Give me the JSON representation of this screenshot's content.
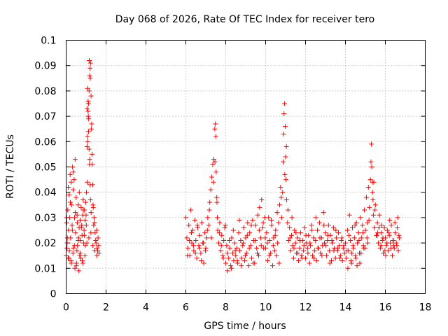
{
  "chart_data": {
    "type": "scatter",
    "title": "Day 068 of 2026, Rate Of TEC Index for receiver tero",
    "xlabel": "GPS time / hours",
    "ylabel": "ROTI / TECUs",
    "xlim": [
      0,
      18
    ],
    "ylim": [
      0,
      0.1
    ],
    "xticks": [
      0,
      2,
      4,
      6,
      8,
      10,
      12,
      14,
      16,
      18
    ],
    "yticks": [
      0,
      0.01,
      0.02,
      0.03,
      0.04,
      0.05,
      0.06,
      0.07,
      0.08,
      0.09,
      0.1
    ],
    "xtick_labels": [
      "0",
      "2",
      "4",
      "6",
      "8",
      "10",
      "12",
      "14",
      "16",
      "18"
    ],
    "ytick_labels": [
      "0",
      "0.01",
      "0.02",
      "0.03",
      "0.04",
      "0.05",
      "0.06",
      "0.07",
      "0.08",
      "0.09",
      "0.1"
    ],
    "grid": true,
    "marker": "plus",
    "color": "#ff0000",
    "series": [
      {
        "x": [
          0.0,
          0.03,
          0.05,
          0.08,
          0.1,
          0.12,
          0.15,
          0.18,
          0.2,
          0.22,
          0.25,
          0.27,
          0.3,
          0.32,
          0.35,
          0.37,
          0.4,
          0.42,
          0.45,
          0.47,
          0.5,
          0.52,
          0.55,
          0.57,
          0.6,
          0.62,
          0.65,
          0.68,
          0.7,
          0.72,
          0.75,
          0.78,
          0.8,
          0.83,
          0.85,
          0.88,
          0.9,
          0.92,
          0.95,
          0.98,
          1.0,
          1.02,
          1.05,
          1.07,
          1.1,
          1.12,
          1.15,
          1.18,
          1.2,
          1.22,
          1.25,
          1.28,
          1.3,
          1.33,
          1.35,
          1.38,
          1.4,
          1.45,
          1.5,
          1.55,
          1.6,
          1.65,
          0.02,
          0.06,
          0.11,
          0.16,
          0.21,
          0.26,
          0.31,
          0.36,
          0.41,
          0.46,
          0.51,
          0.56,
          0.61,
          0.66,
          0.71,
          0.76,
          0.81,
          0.86,
          0.91,
          0.96,
          1.01,
          1.06,
          1.11,
          1.16,
          1.21,
          1.26,
          1.31,
          1.36,
          1.42,
          1.48,
          1.53,
          1.58,
          1.63,
          0.04,
          0.14,
          0.24,
          0.34,
          0.44,
          0.54,
          0.64,
          0.74,
          0.84,
          0.94,
          1.04,
          1.14,
          1.24,
          1.34,
          1.44,
          1.54,
          1.05,
          1.08,
          1.1,
          1.12,
          1.15,
          1.17,
          1.2,
          1.22,
          1.25,
          1.13,
          1.18,
          1.09
        ],
        "y": [
          0.015,
          0.028,
          0.02,
          0.033,
          0.014,
          0.025,
          0.039,
          0.03,
          0.047,
          0.022,
          0.044,
          0.035,
          0.027,
          0.05,
          0.041,
          0.018,
          0.045,
          0.03,
          0.053,
          0.024,
          0.038,
          0.012,
          0.031,
          0.019,
          0.035,
          0.022,
          0.026,
          0.015,
          0.029,
          0.021,
          0.034,
          0.027,
          0.023,
          0.031,
          0.037,
          0.02,
          0.025,
          0.033,
          0.029,
          0.036,
          0.031,
          0.04,
          0.058,
          0.062,
          0.072,
          0.075,
          0.08,
          0.086,
          0.089,
          0.091,
          0.078,
          0.067,
          0.055,
          0.043,
          0.035,
          0.027,
          0.03,
          0.024,
          0.02,
          0.018,
          0.022,
          0.016,
          0.03,
          0.022,
          0.042,
          0.017,
          0.036,
          0.012,
          0.025,
          0.048,
          0.019,
          0.032,
          0.011,
          0.028,
          0.021,
          0.04,
          0.016,
          0.026,
          0.013,
          0.033,
          0.023,
          0.019,
          0.027,
          0.044,
          0.07,
          0.092,
          0.085,
          0.065,
          0.051,
          0.034,
          0.028,
          0.021,
          0.025,
          0.017,
          0.019,
          0.018,
          0.014,
          0.013,
          0.016,
          0.01,
          0.017,
          0.009,
          0.014,
          0.012,
          0.015,
          0.02,
          0.022,
          0.024,
          0.019,
          0.017,
          0.015,
          0.073,
          0.081,
          0.076,
          0.064,
          0.057,
          0.051,
          0.043,
          0.037,
          0.032,
          0.069,
          0.053,
          0.06
        ]
      },
      {
        "x": [
          6.0,
          6.05,
          6.1,
          6.15,
          6.2,
          6.25,
          6.3,
          6.35,
          6.4,
          6.45,
          6.5,
          6.55,
          6.6,
          6.65,
          6.7,
          6.75,
          6.8,
          6.85,
          6.9,
          6.95,
          7.0,
          7.05,
          7.1,
          7.15,
          7.2,
          7.25,
          7.3,
          7.35,
          7.4,
          7.45,
          7.48,
          7.5,
          7.52,
          7.55,
          7.58,
          7.6,
          7.65,
          7.7,
          7.75,
          7.8,
          7.85,
          7.9,
          7.95,
          8.0,
          8.05,
          8.1,
          8.15,
          8.2,
          8.25,
          8.3,
          8.35,
          8.4,
          8.45,
          8.5,
          8.55,
          8.6,
          8.65,
          8.7,
          8.75,
          8.8,
          8.85,
          8.9,
          8.95,
          9.0,
          9.05,
          9.1,
          9.15,
          9.2,
          9.25,
          9.3,
          9.35,
          9.4,
          9.45,
          9.5,
          9.55,
          9.6,
          9.65,
          9.7,
          9.75,
          9.8,
          9.85,
          9.9,
          9.95,
          6.08,
          6.18,
          6.28,
          6.38,
          6.48,
          6.58,
          6.68,
          6.78,
          6.88,
          6.98,
          7.08,
          7.18,
          7.28,
          7.38,
          7.46,
          7.56,
          7.68,
          7.78,
          7.88,
          7.98,
          8.08,
          8.18,
          8.28,
          8.38,
          8.48,
          8.58,
          8.68,
          8.78,
          8.88,
          8.98,
          9.08,
          9.18,
          9.28,
          9.38,
          9.48,
          9.58,
          9.68,
          9.78,
          9.88,
          9.98
        ],
        "y": [
          0.03,
          0.022,
          0.018,
          0.027,
          0.015,
          0.033,
          0.02,
          0.025,
          0.017,
          0.029,
          0.021,
          0.014,
          0.026,
          0.019,
          0.023,
          0.016,
          0.028,
          0.02,
          0.012,
          0.024,
          0.018,
          0.022,
          0.03,
          0.027,
          0.036,
          0.041,
          0.046,
          0.051,
          0.053,
          0.065,
          0.067,
          0.062,
          0.048,
          0.038,
          0.03,
          0.025,
          0.02,
          0.028,
          0.017,
          0.023,
          0.015,
          0.021,
          0.026,
          0.012,
          0.019,
          0.009,
          0.014,
          0.018,
          0.011,
          0.022,
          0.016,
          0.013,
          0.02,
          0.015,
          0.018,
          0.012,
          0.024,
          0.017,
          0.021,
          0.014,
          0.019,
          0.026,
          0.013,
          0.022,
          0.016,
          0.028,
          0.011,
          0.024,
          0.019,
          0.014,
          0.029,
          0.021,
          0.012,
          0.027,
          0.018,
          0.031,
          0.015,
          0.034,
          0.022,
          0.037,
          0.026,
          0.018,
          0.03,
          0.015,
          0.021,
          0.024,
          0.019,
          0.016,
          0.027,
          0.018,
          0.013,
          0.02,
          0.017,
          0.025,
          0.033,
          0.022,
          0.044,
          0.052,
          0.036,
          0.024,
          0.019,
          0.014,
          0.027,
          0.016,
          0.021,
          0.01,
          0.025,
          0.017,
          0.013,
          0.029,
          0.011,
          0.02,
          0.015,
          0.023,
          0.018,
          0.027,
          0.012,
          0.021,
          0.016,
          0.025,
          0.019,
          0.028,
          0.022
        ]
      },
      {
        "x": [
          10.0,
          10.05,
          10.1,
          10.15,
          10.2,
          10.25,
          10.3,
          10.35,
          10.4,
          10.45,
          10.5,
          10.55,
          10.6,
          10.65,
          10.7,
          10.75,
          10.8,
          10.85,
          10.88,
          10.9,
          10.92,
          10.95,
          10.98,
          11.0,
          11.02,
          11.05,
          11.1,
          11.15,
          11.2,
          11.25,
          11.3,
          11.35,
          11.4,
          11.45,
          11.5,
          11.55,
          11.6,
          11.65,
          11.7,
          11.75,
          11.8,
          11.85,
          11.9,
          11.95,
          12.0,
          12.05,
          12.1,
          12.15,
          12.2,
          12.25,
          12.3,
          12.35,
          12.4,
          12.45,
          12.5,
          12.55,
          12.6,
          12.65,
          12.7,
          12.75,
          12.8,
          12.85,
          12.9,
          12.95,
          13.0,
          13.05,
          13.1,
          13.15,
          13.2,
          13.25,
          13.3,
          13.35,
          13.4,
          13.45,
          13.5,
          13.55,
          13.6,
          13.65,
          13.7,
          13.75,
          13.8,
          13.85,
          13.9,
          13.95,
          10.08,
          10.18,
          10.28,
          10.38,
          10.48,
          10.58,
          10.68,
          10.78,
          10.96,
          11.04,
          11.12,
          11.22,
          11.32,
          11.42,
          11.52,
          11.62,
          11.72,
          11.82,
          11.92,
          12.02,
          12.12,
          12.22,
          12.32,
          12.42,
          12.52,
          12.62,
          12.72,
          12.82,
          12.92,
          13.02,
          13.12,
          13.22,
          13.32,
          13.42,
          13.52,
          13.62,
          13.72,
          13.82,
          13.92
        ],
        "y": [
          0.018,
          0.024,
          0.013,
          0.03,
          0.021,
          0.016,
          0.027,
          0.011,
          0.022,
          0.017,
          0.025,
          0.015,
          0.02,
          0.028,
          0.035,
          0.042,
          0.03,
          0.04,
          0.052,
          0.063,
          0.071,
          0.075,
          0.066,
          0.054,
          0.045,
          0.037,
          0.028,
          0.021,
          0.026,
          0.017,
          0.023,
          0.019,
          0.014,
          0.025,
          0.02,
          0.016,
          0.022,
          0.013,
          0.018,
          0.024,
          0.015,
          0.021,
          0.017,
          0.026,
          0.014,
          0.02,
          0.018,
          0.023,
          0.012,
          0.019,
          0.027,
          0.015,
          0.022,
          0.017,
          0.021,
          0.013,
          0.025,
          0.018,
          0.028,
          0.016,
          0.022,
          0.019,
          0.032,
          0.02,
          0.024,
          0.015,
          0.021,
          0.027,
          0.017,
          0.023,
          0.013,
          0.02,
          0.026,
          0.018,
          0.014,
          0.022,
          0.017,
          0.024,
          0.019,
          0.015,
          0.021,
          0.013,
          0.018,
          0.016,
          0.02,
          0.015,
          0.029,
          0.019,
          0.023,
          0.032,
          0.012,
          0.038,
          0.047,
          0.058,
          0.033,
          0.022,
          0.03,
          0.018,
          0.024,
          0.016,
          0.021,
          0.014,
          0.019,
          0.023,
          0.016,
          0.02,
          0.025,
          0.014,
          0.03,
          0.018,
          0.022,
          0.015,
          0.027,
          0.019,
          0.023,
          0.012,
          0.021,
          0.017,
          0.025,
          0.018,
          0.014,
          0.022,
          0.019
        ]
      },
      {
        "x": [
          14.0,
          14.05,
          14.1,
          14.15,
          14.2,
          14.25,
          14.3,
          14.35,
          14.4,
          14.45,
          14.5,
          14.55,
          14.6,
          14.65,
          14.7,
          14.75,
          14.8,
          14.85,
          14.9,
          14.95,
          15.0,
          15.05,
          15.1,
          15.15,
          15.2,
          15.25,
          15.28,
          15.3,
          15.32,
          15.35,
          15.38,
          15.4,
          15.45,
          15.5,
          15.55,
          15.6,
          15.65,
          15.7,
          15.75,
          15.8,
          15.85,
          15.9,
          15.95,
          16.0,
          16.05,
          16.1,
          16.15,
          16.2,
          16.25,
          16.3,
          16.35,
          16.4,
          16.45,
          16.5,
          16.55,
          16.6,
          16.65,
          16.7,
          14.08,
          14.18,
          14.28,
          14.38,
          14.48,
          14.58,
          14.68,
          14.78,
          14.88,
          14.98,
          15.08,
          15.18,
          15.36,
          15.48,
          15.58,
          15.68,
          15.78,
          15.88,
          15.98,
          16.08,
          16.18,
          16.28,
          16.38,
          16.48,
          16.58,
          16.68,
          14.12,
          14.32,
          14.52,
          14.72,
          14.92,
          15.12,
          15.42,
          15.62,
          15.82,
          16.02,
          16.22,
          16.42,
          16.62
        ],
        "y": [
          0.02,
          0.014,
          0.025,
          0.017,
          0.031,
          0.021,
          0.012,
          0.026,
          0.018,
          0.022,
          0.015,
          0.028,
          0.02,
          0.024,
          0.016,
          0.03,
          0.022,
          0.027,
          0.019,
          0.033,
          0.025,
          0.038,
          0.028,
          0.042,
          0.034,
          0.045,
          0.052,
          0.059,
          0.05,
          0.044,
          0.037,
          0.031,
          0.026,
          0.035,
          0.023,
          0.028,
          0.02,
          0.031,
          0.018,
          0.024,
          0.021,
          0.016,
          0.026,
          0.022,
          0.019,
          0.025,
          0.017,
          0.023,
          0.02,
          0.027,
          0.015,
          0.021,
          0.018,
          0.024,
          0.02,
          0.026,
          0.017,
          0.022,
          0.017,
          0.023,
          0.013,
          0.019,
          0.027,
          0.011,
          0.021,
          0.016,
          0.024,
          0.018,
          0.022,
          0.029,
          0.04,
          0.033,
          0.023,
          0.026,
          0.019,
          0.022,
          0.017,
          0.02,
          0.024,
          0.018,
          0.021,
          0.028,
          0.019,
          0.023,
          0.01,
          0.016,
          0.014,
          0.012,
          0.018,
          0.02,
          0.044,
          0.024,
          0.027,
          0.015,
          0.029,
          0.019,
          0.03
        ]
      }
    ]
  }
}
